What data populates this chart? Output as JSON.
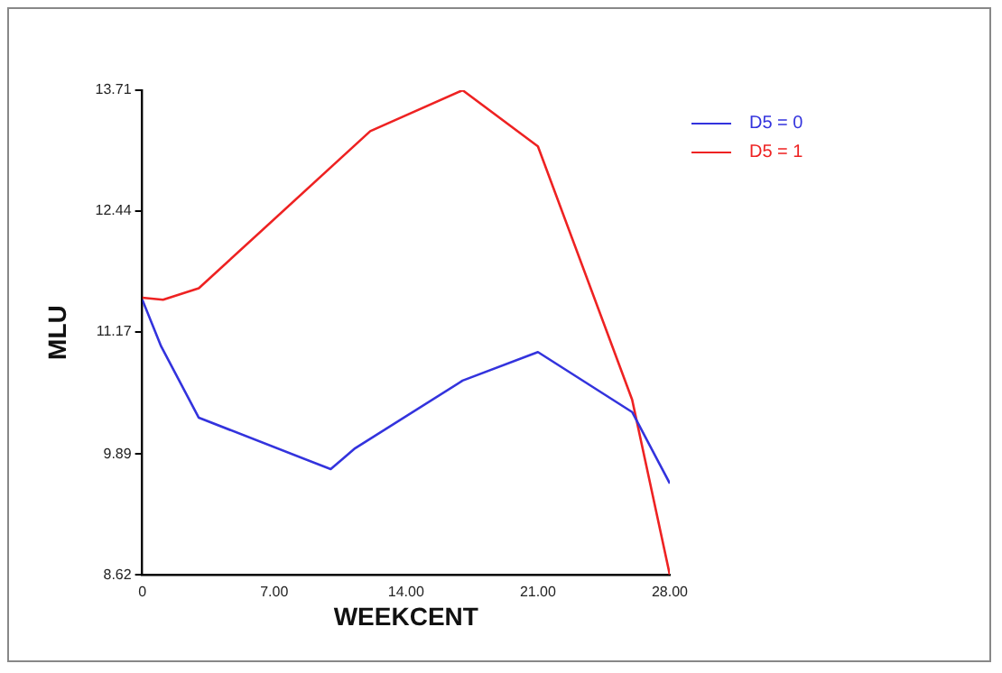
{
  "chart_data": {
    "type": "line",
    "xlabel": "WEEKCENT",
    "ylabel": "MLU",
    "xlim": [
      0,
      28
    ],
    "xticks": [
      {
        "value": 0,
        "label": "0"
      },
      {
        "value": 7,
        "label": "7.00"
      },
      {
        "value": 14,
        "label": "14.00"
      },
      {
        "value": 21,
        "label": "21.00"
      },
      {
        "value": 28,
        "label": "28.00"
      }
    ],
    "ylim": [
      8.62,
      13.71
    ],
    "yticks": [
      8.62,
      9.89,
      11.17,
      12.44,
      13.71
    ],
    "series": [
      {
        "name": "D5 = 0",
        "color": "#3333dd",
        "x": [
          0,
          1,
          3,
          10,
          11.3,
          17,
          21,
          26,
          28
        ],
        "values": [
          11.51,
          11.02,
          10.27,
          9.73,
          9.95,
          10.66,
          10.96,
          10.33,
          9.58
        ]
      },
      {
        "name": "D5 = 1",
        "color": "#ee2222",
        "x": [
          0,
          1.1,
          3,
          12.1,
          17,
          21,
          26,
          28
        ],
        "values": [
          11.53,
          11.51,
          11.63,
          13.28,
          13.71,
          13.12,
          10.46,
          8.62
        ]
      }
    ],
    "grid": false,
    "legend": "top right",
    "marker": "none",
    "line_style": "solid"
  }
}
